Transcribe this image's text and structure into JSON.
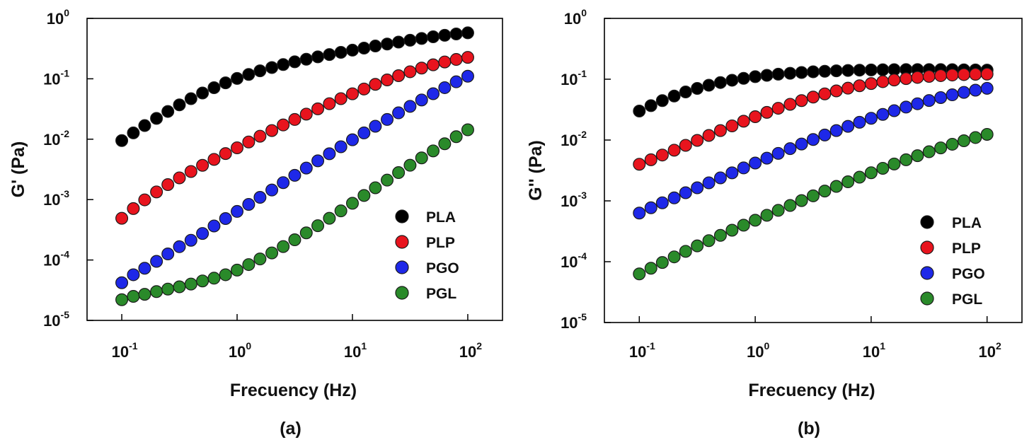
{
  "chart_data": [
    {
      "type": "scatter",
      "panel_label": "(a)",
      "title": "",
      "xlabel": "Frecuency (Hz)",
      "ylabel": "G' (Pa)",
      "xscale": "log",
      "yscale": "log",
      "xlim": [
        0.05,
        200
      ],
      "ylim": [
        1e-05,
        1
      ],
      "x_ticks": [
        {
          "base": "10",
          "exp": "-1",
          "value": 0.1
        },
        {
          "base": "10",
          "exp": "0",
          "value": 1
        },
        {
          "base": "10",
          "exp": "1",
          "value": 10
        },
        {
          "base": "10",
          "exp": "2",
          "value": 100
        }
      ],
      "y_ticks": [
        {
          "base": "10",
          "exp": "-5",
          "value": 1e-05
        },
        {
          "base": "10",
          "exp": "-4",
          "value": 0.0001
        },
        {
          "base": "10",
          "exp": "-3",
          "value": 0.001
        },
        {
          "base": "10",
          "exp": "-2",
          "value": 0.01
        },
        {
          "base": "10",
          "exp": "-1",
          "value": 0.1
        },
        {
          "base": "10",
          "exp": "0",
          "value": 1
        }
      ],
      "legend_position": "lower-right",
      "x": [
        0.1,
        0.126,
        0.158,
        0.2,
        0.251,
        0.316,
        0.398,
        0.501,
        0.631,
        0.794,
        1,
        1.26,
        1.58,
        2,
        2.51,
        3.16,
        3.98,
        5.01,
        6.31,
        7.94,
        10,
        12.6,
        15.8,
        20,
        25.1,
        31.6,
        39.8,
        50.1,
        63.1,
        79.4,
        100
      ],
      "series": [
        {
          "name": "PLA",
          "color": "#000000",
          "values": [
            0.0095,
            0.0127,
            0.0168,
            0.0221,
            0.0288,
            0.037,
            0.0468,
            0.0582,
            0.0712,
            0.0856,
            0.1013,
            0.118,
            0.1355,
            0.1536,
            0.1722,
            0.1912,
            0.2108,
            0.2311,
            0.2522,
            0.2744,
            0.2978,
            0.3226,
            0.3489,
            0.3766,
            0.4055,
            0.4354,
            0.4658,
            0.4961,
            0.5254,
            0.5525,
            0.5764
          ]
        },
        {
          "name": "PLP",
          "color": "#e8141e",
          "values": [
            0.00049,
            0.00071,
            0.00099,
            0.00134,
            0.00177,
            0.00229,
            0.00292,
            0.00369,
            0.00463,
            0.00578,
            0.0072,
            0.009,
            0.0112,
            0.0139,
            0.0172,
            0.0212,
            0.026,
            0.0318,
            0.0387,
            0.0469,
            0.0565,
            0.0678,
            0.0809,
            0.0958,
            0.1125,
            0.1308,
            0.1503,
            0.1703,
            0.1901,
            0.209,
            0.2265
          ]
        },
        {
          "name": "PGO",
          "color": "#1e28e8",
          "values": [
            4.2e-05,
            5.7e-05,
            7.3e-05,
            9.5e-05,
            0.000126,
            0.000166,
            0.000212,
            0.000275,
            0.000366,
            0.000485,
            0.000637,
            0.000833,
            0.00109,
            0.00144,
            0.00191,
            0.00252,
            0.00333,
            0.00438,
            0.00574,
            0.0075,
            0.00977,
            0.0127,
            0.0164,
            0.0212,
            0.0273,
            0.035,
            0.0446,
            0.0566,
            0.0713,
            0.0891,
            0.1103
          ]
        },
        {
          "name": "PGL",
          "color": "#2a8a2a",
          "values": [
            2.2e-05,
            2.5e-05,
            2.7e-05,
            3e-05,
            3.3e-05,
            3.6e-05,
            4e-05,
            4.5e-05,
            5e-05,
            5.7e-05,
            6.8e-05,
            8.4e-05,
            0.000104,
            0.000131,
            0.000167,
            0.000216,
            0.000281,
            0.00037,
            0.00049,
            0.00065,
            0.00087,
            0.00117,
            0.00157,
            0.0021,
            0.0028,
            0.0037,
            0.0049,
            0.0064,
            0.0084,
            0.011,
            0.0143
          ]
        }
      ]
    },
    {
      "type": "scatter",
      "panel_label": "(b)",
      "title": "",
      "xlabel": "Frecuency (Hz)",
      "ylabel": "G'' (Pa)",
      "xscale": "log",
      "yscale": "log",
      "xlim": [
        0.05,
        200
      ],
      "ylim": [
        1e-05,
        1
      ],
      "x_ticks": [
        {
          "base": "10",
          "exp": "-1",
          "value": 0.1
        },
        {
          "base": "10",
          "exp": "0",
          "value": 1
        },
        {
          "base": "10",
          "exp": "1",
          "value": 10
        },
        {
          "base": "10",
          "exp": "2",
          "value": 100
        }
      ],
      "y_ticks": [
        {
          "base": "10",
          "exp": "-5",
          "value": 1e-05
        },
        {
          "base": "10",
          "exp": "-4",
          "value": 0.0001
        },
        {
          "base": "10",
          "exp": "-3",
          "value": 0.001
        },
        {
          "base": "10",
          "exp": "-2",
          "value": 0.01
        },
        {
          "base": "10",
          "exp": "-1",
          "value": 0.1
        },
        {
          "base": "10",
          "exp": "0",
          "value": 1
        }
      ],
      "legend_position": "lower-right",
      "x": [
        0.1,
        0.126,
        0.158,
        0.2,
        0.251,
        0.316,
        0.398,
        0.501,
        0.631,
        0.794,
        1,
        1.26,
        1.58,
        2,
        2.51,
        3.16,
        3.98,
        5.01,
        6.31,
        7.94,
        10,
        12.6,
        15.8,
        20,
        25.1,
        31.6,
        39.8,
        50.1,
        63.1,
        79.4,
        100
      ],
      "series": [
        {
          "name": "PLA",
          "color": "#000000",
          "values": [
            0.03,
            0.0368,
            0.0445,
            0.0529,
            0.0617,
            0.0707,
            0.0796,
            0.0882,
            0.0962,
            0.1035,
            0.1101,
            0.1159,
            0.121,
            0.1253,
            0.1291,
            0.1323,
            0.135,
            0.1373,
            0.1393,
            0.1409,
            0.1421,
            0.1431,
            0.1437,
            0.1441,
            0.1442,
            0.1441,
            0.1438,
            0.1434,
            0.1428,
            0.1421,
            0.1413
          ]
        },
        {
          "name": "PLP",
          "color": "#e8141e",
          "values": [
            0.004,
            0.00474,
            0.00567,
            0.00681,
            0.00819,
            0.00986,
            0.0119,
            0.0143,
            0.0171,
            0.0204,
            0.0242,
            0.0285,
            0.0333,
            0.0387,
            0.0445,
            0.0508,
            0.0574,
            0.0643,
            0.0712,
            0.0781,
            0.0848,
            0.0912,
            0.0971,
            0.1024,
            0.1071,
            0.1112,
            0.1145,
            0.1172,
            0.1192,
            0.1206,
            0.1215
          ]
        },
        {
          "name": "PGO",
          "color": "#1e28e8",
          "values": [
            0.00063,
            0.00077,
            0.00093,
            0.00112,
            0.00136,
            0.00164,
            0.00198,
            0.00239,
            0.00289,
            0.00348,
            0.00419,
            0.00504,
            0.00604,
            0.00722,
            0.00861,
            0.0102,
            0.0121,
            0.0143,
            0.0168,
            0.0196,
            0.0228,
            0.0264,
            0.0304,
            0.0348,
            0.0395,
            0.0446,
            0.0499,
            0.0554,
            0.0608,
            0.066,
            0.0709
          ]
        },
        {
          "name": "PGL",
          "color": "#2a8a2a",
          "values": [
            6.3e-05,
            7.8e-05,
            9.7e-05,
            0.00012,
            0.000148,
            0.000182,
            0.000222,
            0.000271,
            0.000329,
            0.000398,
            0.00048,
            0.00058,
            0.000698,
            0.00084,
            0.00101,
            0.00121,
            0.00145,
            0.00173,
            0.00206,
            0.00245,
            0.0029,
            0.00343,
            0.00404,
            0.00474,
            0.00553,
            0.00643,
            0.00743,
            0.00853,
            0.00973,
            0.011,
            0.0124
          ]
        }
      ]
    }
  ]
}
